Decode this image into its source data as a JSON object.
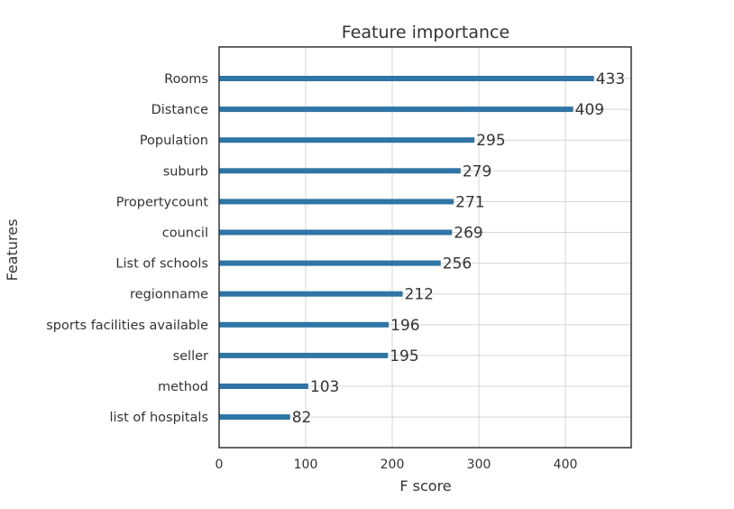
{
  "chart_data": {
    "type": "bar",
    "orientation": "horizontal",
    "title": "Feature importance",
    "xlabel": "F score",
    "ylabel": "Features",
    "xlim": [
      0,
      476
    ],
    "xticks": [
      0,
      100,
      200,
      300,
      400
    ],
    "grid": true,
    "bar_color": "#2f75a6",
    "categories": [
      "Rooms",
      "Distance",
      "Population",
      "suburb",
      "Propertycount",
      "council",
      "List of schools",
      "regionname",
      "sports facilities available",
      "seller",
      "method",
      "list of hospitals"
    ],
    "values": [
      433,
      409,
      295,
      279,
      271,
      269,
      256,
      212,
      196,
      195,
      103,
      82
    ]
  }
}
